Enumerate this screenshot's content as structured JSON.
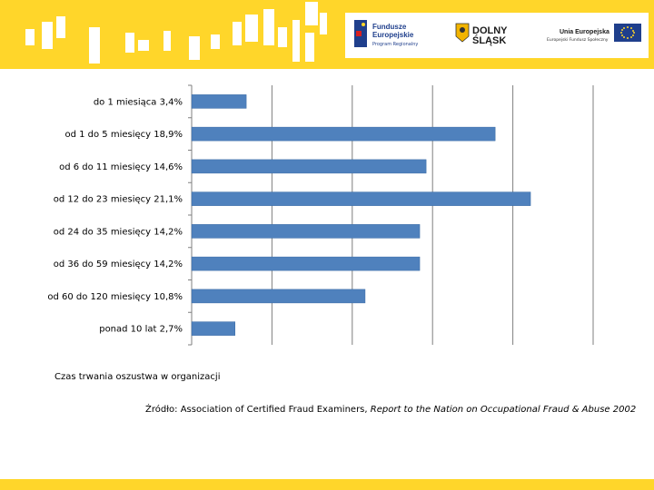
{
  "header": {
    "fe_logo_line1": "Fundusze",
    "fe_logo_line2": "Europejskie",
    "fe_logo_sub": "Program Regionalny",
    "ds_logo_line1": "DOLNY",
    "ds_logo_line2": "ŚLĄSK",
    "eu_logo_line1": "Unia Europejska",
    "eu_logo_sub": "Europejski Fundusz Społeczny",
    "brand_color": "#ffd62a"
  },
  "chart_data": {
    "type": "bar",
    "orientation": "horizontal",
    "categories": [
      "do 1 miesiąca 3,4%",
      "od 1 do 5 miesięcy 18,9%",
      "od 6 do 11 miesięcy 14,6%",
      "od 12 do 23 miesięcy 21,1%",
      "od 24 do 35 miesięcy 14,2%",
      "od 36 do 59 miesięcy 14,2%",
      "od 60 do 120 miesięcy 10,8%",
      "ponad 10 lat 2,7%"
    ],
    "values": [
      3.4,
      18.9,
      14.6,
      21.1,
      14.2,
      14.2,
      10.8,
      2.7
    ],
    "xlim": [
      0,
      25
    ],
    "x_gridlines": [
      5,
      10,
      15,
      20,
      25
    ],
    "grid": true,
    "bar_color": "#4f81bd",
    "title": "",
    "xlabel": "Czas trwania oszustwa w organizacji",
    "ylabel": ""
  },
  "source": {
    "prefix": "Źródło: Association of Certified Fraud Examiners, ",
    "title": "Report to the Nation on Occupational Fraud & Abuse 2002"
  }
}
